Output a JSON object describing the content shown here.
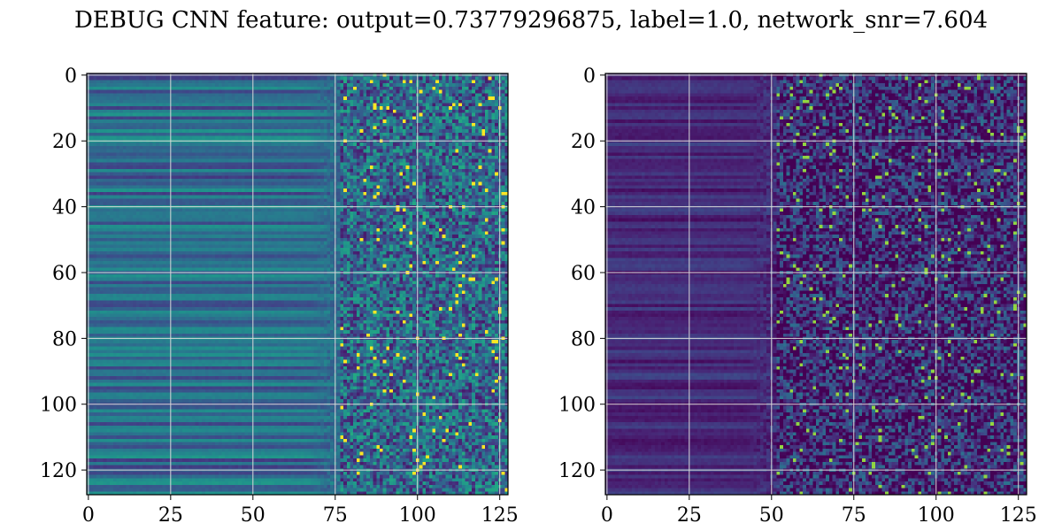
{
  "figure_title": "DEBUG CNN feature: output=0.73779296875, label=1.0, network_snr=7.604",
  "chart_data": [
    {
      "type": "heatmap",
      "title": "",
      "xlabel": "",
      "ylabel": "",
      "colormap": "viridis",
      "shape": [
        128,
        128
      ],
      "xlim": [
        -0.5,
        127.5
      ],
      "ylim": [
        127.5,
        -0.5
      ],
      "xticks": [
        0,
        25,
        50,
        75,
        100,
        125
      ],
      "yticks": [
        0,
        20,
        40,
        60,
        80,
        100,
        120
      ],
      "grid": true,
      "description_values": {
        "left_region_mean": 0.35,
        "noise_onset_column": 75
      }
    },
    {
      "type": "heatmap",
      "title": "",
      "xlabel": "",
      "ylabel": "",
      "colormap": "viridis",
      "shape": [
        128,
        128
      ],
      "xlim": [
        -0.5,
        127.5
      ],
      "ylim": [
        127.5,
        -0.5
      ],
      "xticks": [
        0,
        25,
        50,
        75,
        100,
        125
      ],
      "yticks": [
        0,
        20,
        40,
        60,
        80,
        100,
        120
      ],
      "grid": true,
      "description_values": {
        "left_region_mean": 0.12,
        "noise_onset_column": 50
      }
    }
  ],
  "colors": {
    "grid": "#d9d9d9",
    "axis": "#000000"
  }
}
